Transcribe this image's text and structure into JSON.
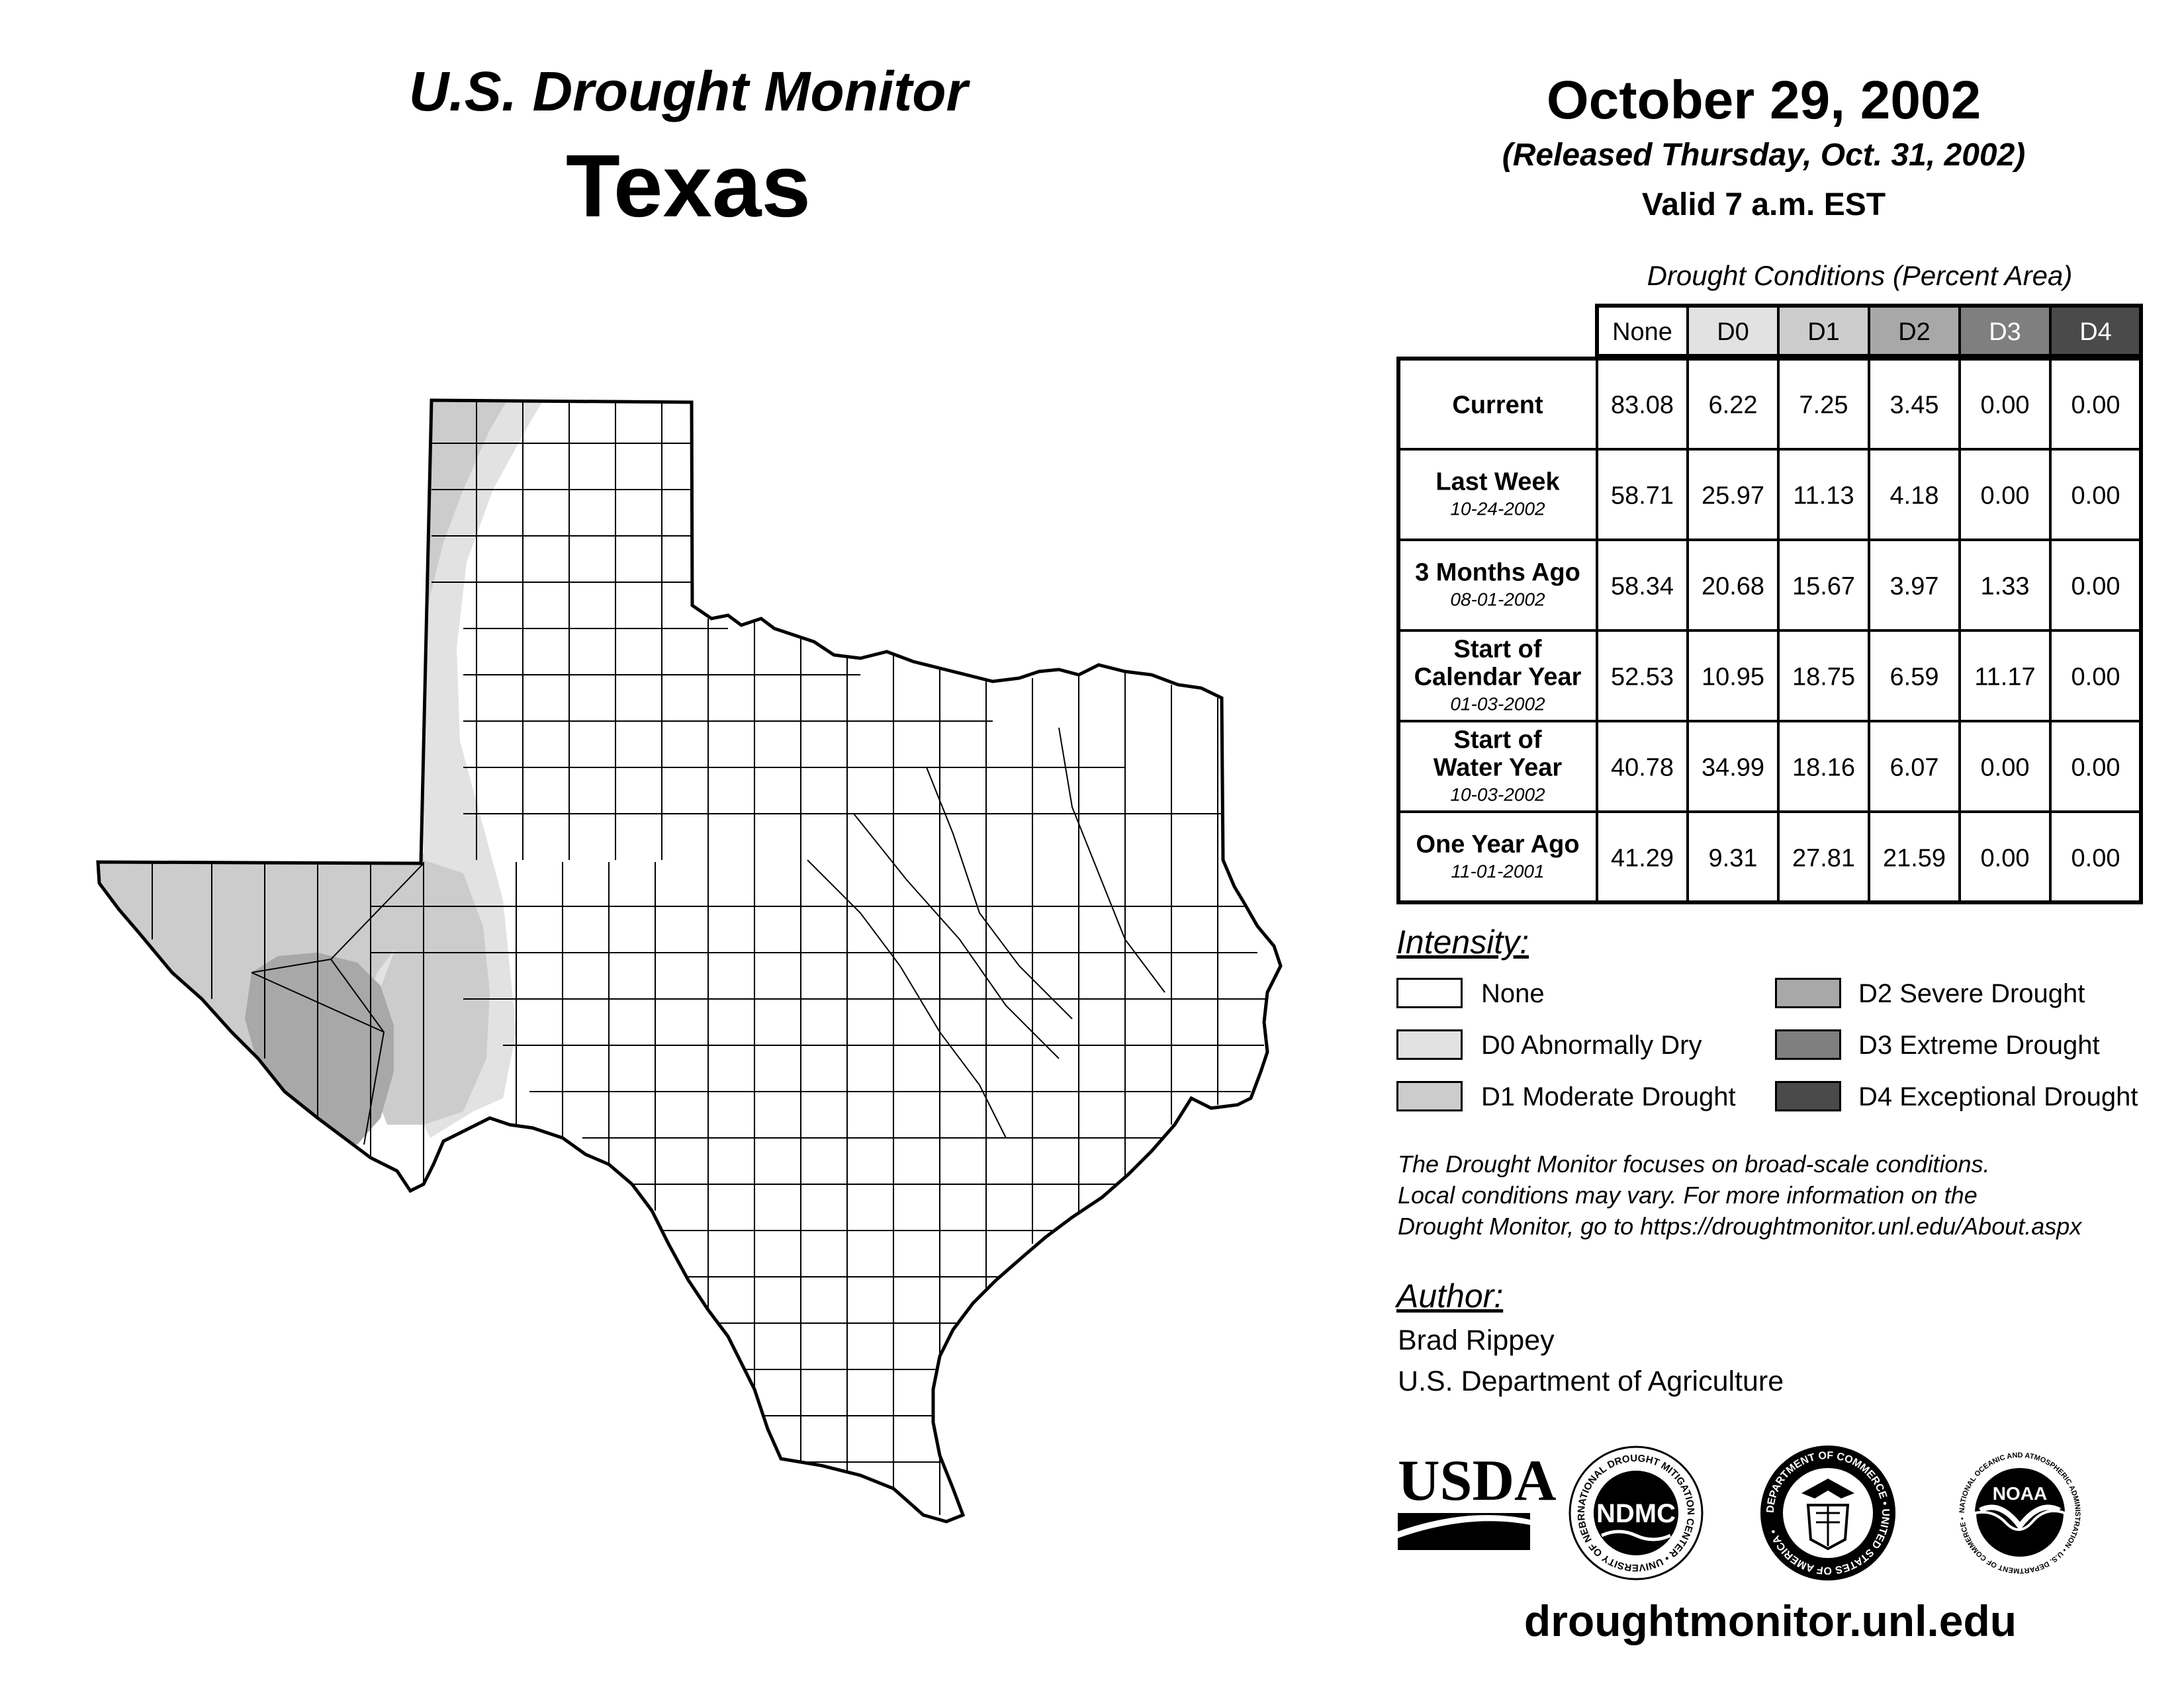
{
  "header": {
    "title": "U.S. Drought Monitor",
    "state": "Texas",
    "date": "October 29, 2002",
    "released": "(Released Thursday, Oct. 31, 2002)",
    "valid": "Valid 7 a.m. EST"
  },
  "table": {
    "caption": "Drought Conditions (Percent Area)",
    "columns": [
      "None",
      "D0",
      "D1",
      "D2",
      "D3",
      "D4"
    ],
    "column_colors": [
      "#ffffff",
      "#e2e2e2",
      "#cccccc",
      "#a8a8a8",
      "#7f7f7f",
      "#4a4a4a"
    ],
    "rows": [
      {
        "label": [
          "Current"
        ],
        "date": "",
        "values": [
          "83.08",
          "6.22",
          "7.25",
          "3.45",
          "0.00",
          "0.00"
        ]
      },
      {
        "label": [
          "Last Week"
        ],
        "date": "10-24-2002",
        "values": [
          "58.71",
          "25.97",
          "11.13",
          "4.18",
          "0.00",
          "0.00"
        ]
      },
      {
        "label": [
          "3 Months Ago"
        ],
        "date": "08-01-2002",
        "values": [
          "58.34",
          "20.68",
          "15.67",
          "3.97",
          "1.33",
          "0.00"
        ]
      },
      {
        "label": [
          "Start of",
          "Calendar Year"
        ],
        "date": "01-03-2002",
        "values": [
          "52.53",
          "10.95",
          "18.75",
          "6.59",
          "11.17",
          "0.00"
        ]
      },
      {
        "label": [
          "Start of",
          "Water Year"
        ],
        "date": "10-03-2002",
        "values": [
          "40.78",
          "34.99",
          "18.16",
          "6.07",
          "0.00",
          "0.00"
        ]
      },
      {
        "label": [
          "One Year Ago"
        ],
        "date": "11-01-2001",
        "values": [
          "41.29",
          "9.31",
          "27.81",
          "21.59",
          "0.00",
          "0.00"
        ]
      }
    ]
  },
  "intensity": {
    "heading": "Intensity:",
    "items": [
      {
        "label": "None",
        "color": "#ffffff"
      },
      {
        "label": "D0 Abnormally Dry",
        "color": "#e2e2e2"
      },
      {
        "label": "D1 Moderate Drought",
        "color": "#cccccc"
      },
      {
        "label": "D2 Severe Drought",
        "color": "#a8a8a8"
      },
      {
        "label": "D3 Extreme Drought",
        "color": "#7f7f7f"
      },
      {
        "label": "D4 Exceptional Drought",
        "color": "#4a4a4a"
      }
    ]
  },
  "note": {
    "lines": [
      "The Drought Monitor focuses on broad-scale conditions.",
      "Local conditions may vary. For more information on the",
      "Drought Monitor, go to https://droughtmonitor.unl.edu/About.aspx"
    ]
  },
  "author": {
    "heading": "Author:",
    "name": "Brad Rippey",
    "org": "U.S. Department of Agriculture"
  },
  "logos": {
    "usda": "USDA",
    "ndmc": "NDMC",
    "ndmc_ring": "NATIONAL DROUGHT MITIGATION CENTER • UNIVERSITY OF NEBRASKA •",
    "commerce_ring": "DEPARTMENT OF COMMERCE • UNITED STATES OF AMERICA •",
    "noaa": "NOAA",
    "noaa_ring": "NATIONAL OCEANIC AND ATMOSPHERIC ADMINISTRATION • U.S. DEPARTMENT OF COMMERCE •"
  },
  "footer": {
    "url": "droughtmonitor.unl.edu"
  }
}
